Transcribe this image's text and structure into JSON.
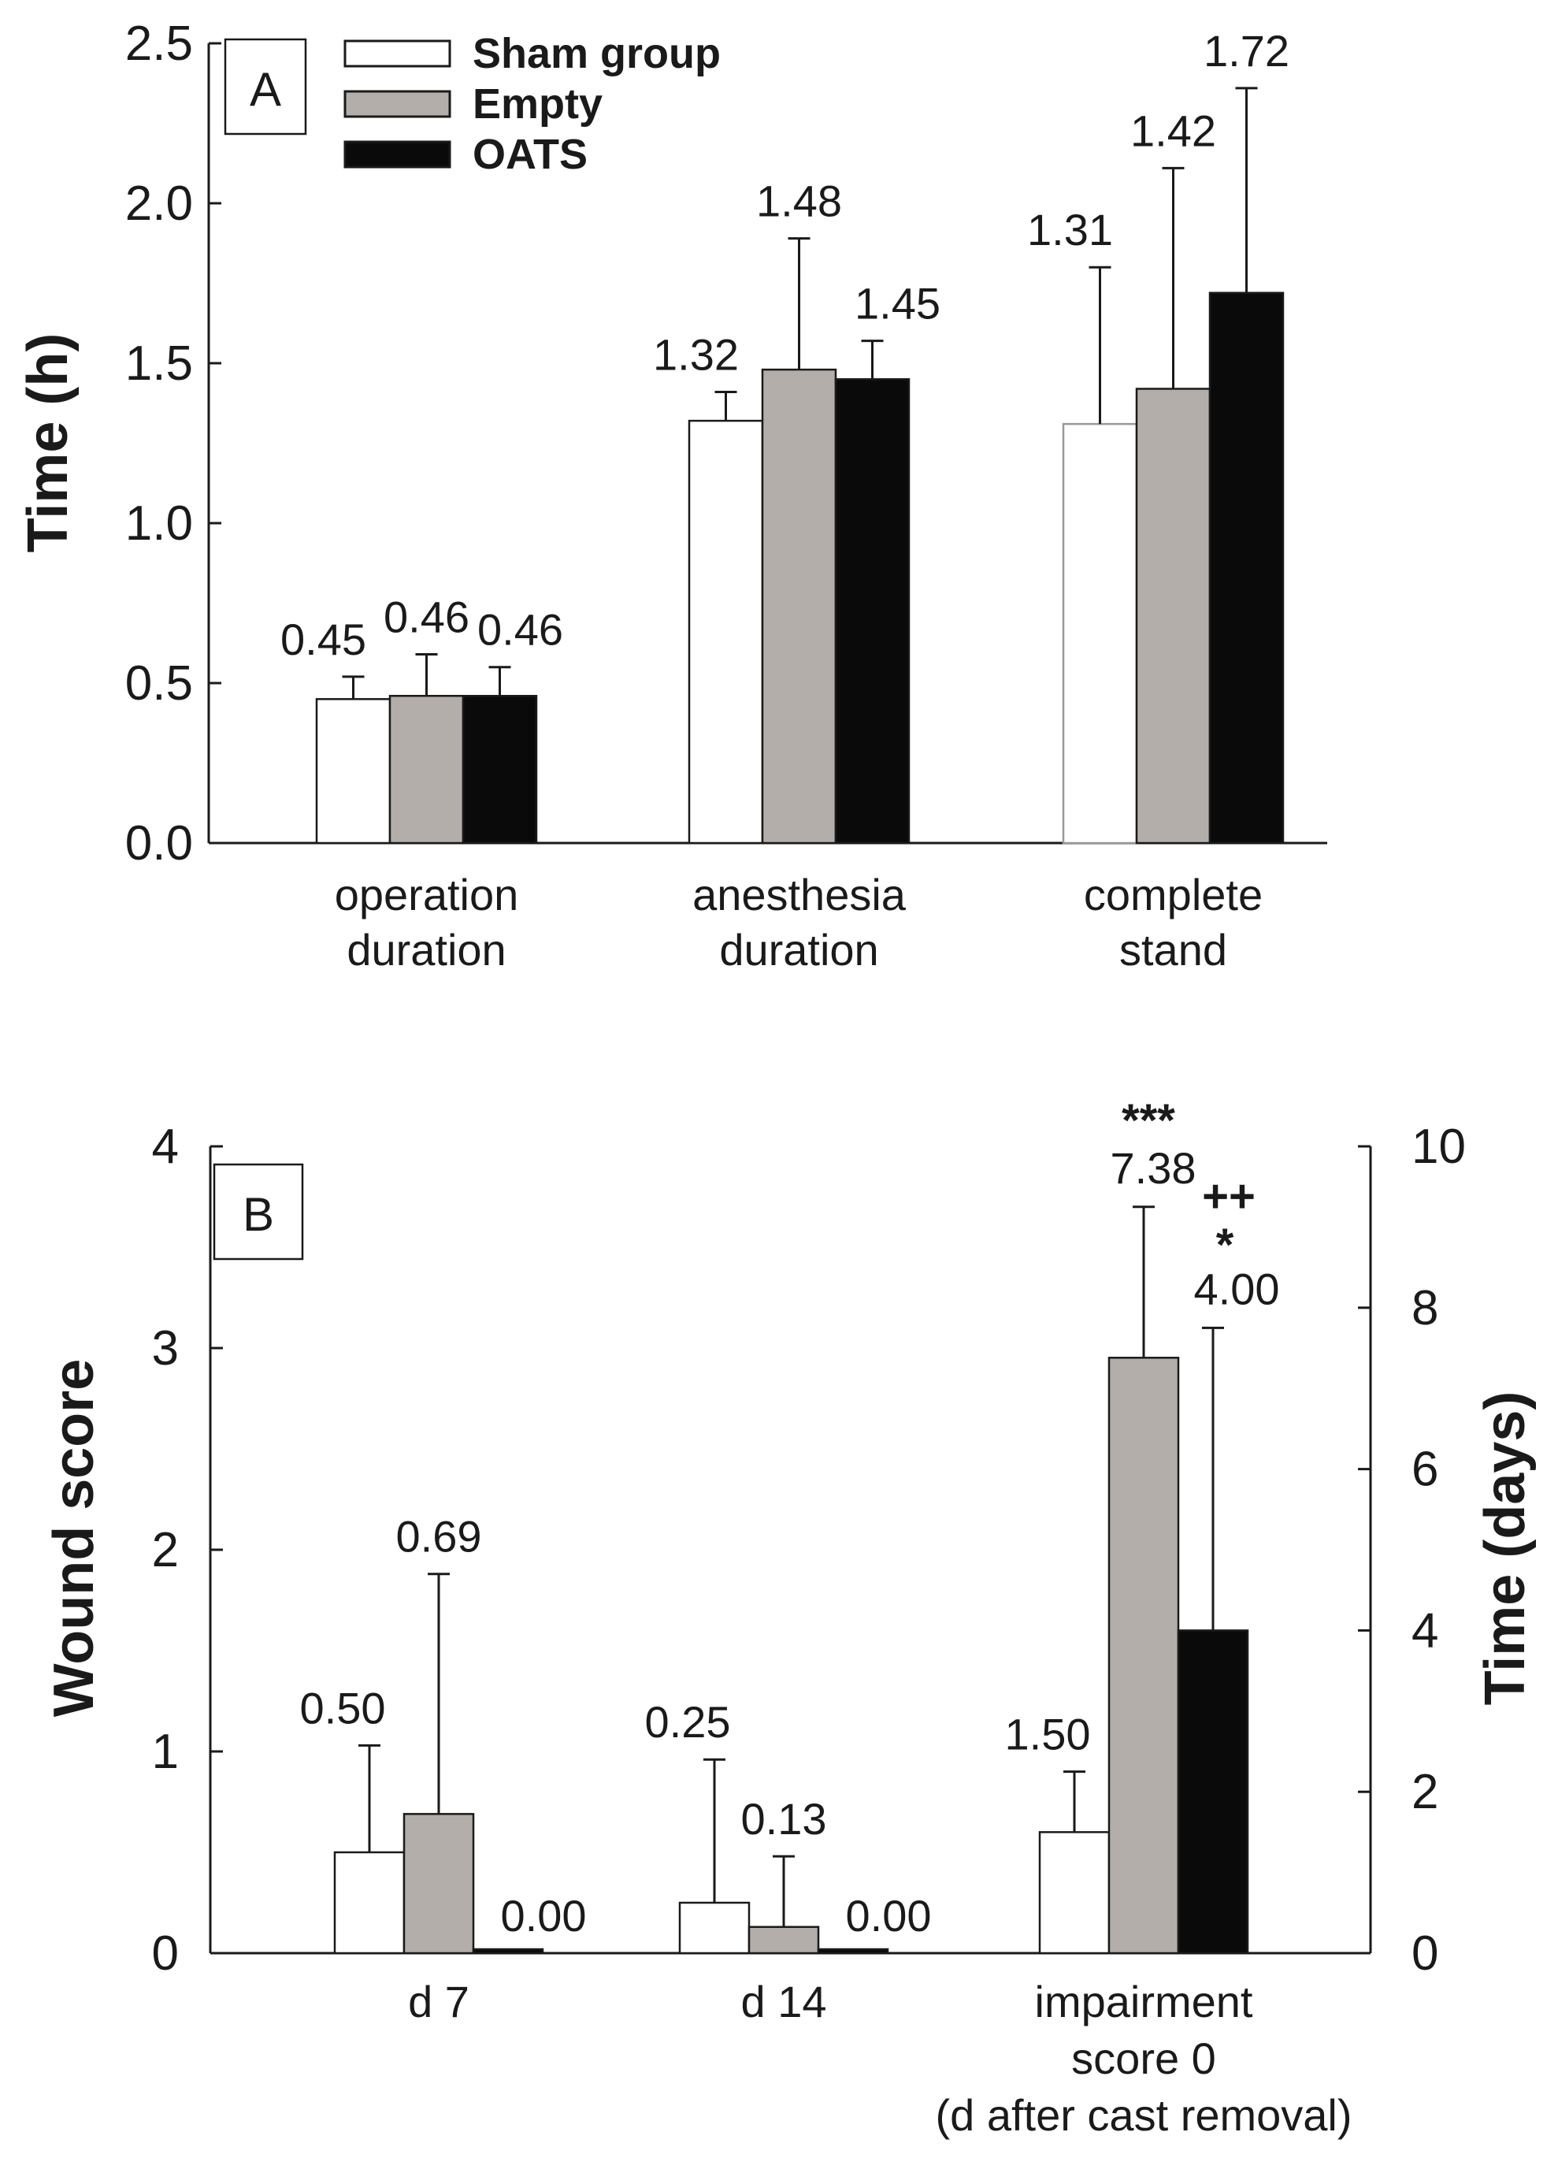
{
  "colors": {
    "sham": "#ffffff",
    "empty": "#b4aeab",
    "oats": "#0a0a0a",
    "outline": "#1a1a1a"
  },
  "legend": [
    {
      "label": "Sham group",
      "color": "#ffffff"
    },
    {
      "label": "Empty",
      "color": "#b4aeab"
    },
    {
      "label": "OATS",
      "color": "#0a0a0a"
    }
  ],
  "chart_data": [
    {
      "panel": "A",
      "type": "bar",
      "ylabel": "Time (h)",
      "xlabel": "",
      "ylim": [
        0,
        2.5
      ],
      "yticks": [
        "0.0",
        "0.5",
        "1.0",
        "1.5",
        "2.0",
        "2.5"
      ],
      "categories": [
        [
          "operation",
          "duration"
        ],
        [
          "anesthesia",
          "duration"
        ],
        [
          "complete",
          "stand"
        ]
      ],
      "series": [
        {
          "name": "Sham group",
          "values": [
            0.45,
            1.32,
            1.31
          ],
          "err": [
            0.07,
            0.09,
            0.49
          ],
          "labels": [
            "0.45",
            "1.32",
            "1.31"
          ]
        },
        {
          "name": "Empty",
          "values": [
            0.46,
            1.48,
            1.42
          ],
          "err": [
            0.13,
            0.41,
            0.69
          ],
          "labels": [
            "0.46",
            "1.48",
            "1.42"
          ]
        },
        {
          "name": "OATS",
          "values": [
            0.46,
            1.45,
            1.72
          ],
          "err": [
            0.09,
            0.12,
            0.64
          ],
          "labels": [
            "0.46",
            "1.45",
            "1.72"
          ]
        }
      ]
    },
    {
      "panel": "B",
      "type": "bar",
      "ylabel": "Wound score",
      "y2label": "Time (days)",
      "xlabel": "",
      "ylim": [
        0,
        4
      ],
      "yticks": [
        "0",
        "1",
        "2",
        "3",
        "4"
      ],
      "y2lim": [
        0,
        10
      ],
      "y2ticks": [
        "0",
        "2",
        "4",
        "6",
        "8",
        "10"
      ],
      "categories": [
        [
          "d 7"
        ],
        [
          "d 14"
        ],
        [
          "impairment",
          "score 0",
          "(d after cast removal)"
        ]
      ],
      "category_axis": [
        "left",
        "left",
        "right"
      ],
      "series": [
        {
          "name": "Sham group",
          "values": [
            0.5,
            0.25,
            1.5
          ],
          "err": [
            0.53,
            0.71,
            0.75
          ],
          "labels": [
            "0.50",
            "0.25",
            "1.50"
          ]
        },
        {
          "name": "Empty",
          "values": [
            0.69,
            0.13,
            7.38
          ],
          "err": [
            1.19,
            0.35,
            1.87
          ],
          "labels": [
            "0.69",
            "0.13",
            "7.38"
          ]
        },
        {
          "name": "OATS",
          "values": [
            0.0,
            0.0,
            4.0
          ],
          "err": [
            0,
            0,
            3.75
          ],
          "labels": [
            "0.00",
            "0.00",
            "4.00"
          ]
        }
      ],
      "annotations": [
        {
          "category": 2,
          "series": 1,
          "text": "***"
        },
        {
          "category": 2,
          "series": 2,
          "text": "++"
        },
        {
          "category": 2,
          "series": 2,
          "text": "*"
        }
      ]
    }
  ]
}
